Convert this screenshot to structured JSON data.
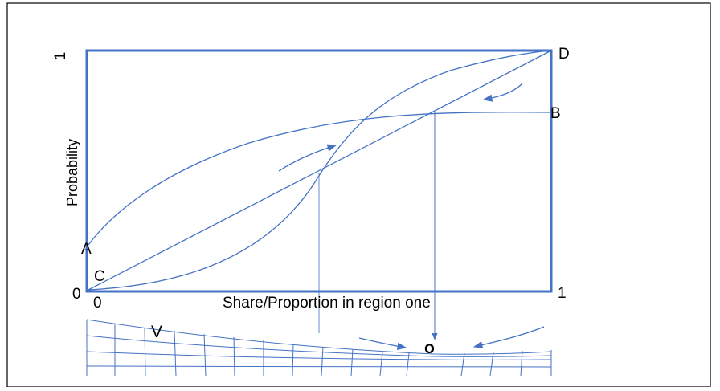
{
  "axes": {
    "y_label": "Probability",
    "x_label": "Share/Proportion in region one",
    "y_top": "1",
    "y_origin": "0",
    "x_origin": "0",
    "x_right": "1"
  },
  "points": {
    "A": "A",
    "B": "B",
    "C": "C",
    "D": "D"
  },
  "landscape": {
    "V": "V",
    "O": "o"
  },
  "colors": {
    "line": "#4472c4",
    "text": "#000000"
  }
}
